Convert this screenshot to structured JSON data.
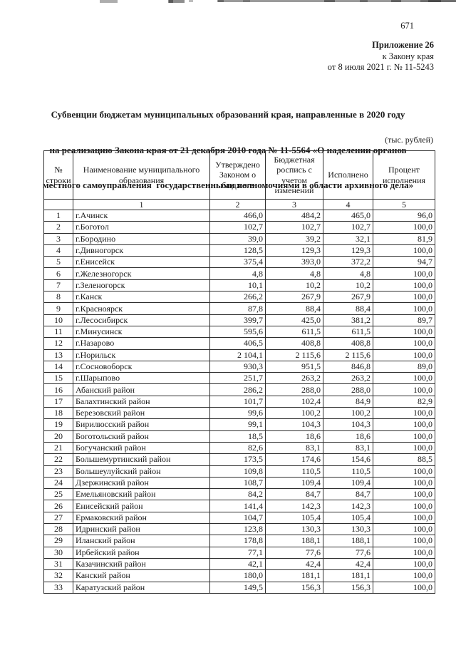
{
  "page": {
    "number": "671",
    "appendix": [
      "Приложение 26",
      "к Закону края",
      "от 8 июля 2021 г. № 11-5243"
    ],
    "title_lines": [
      "Субвенции бюджетам муниципальных образований края, направленные в 2020 году",
      "на реализацию Закона края от 21 декабря 2010 года № 11-5564 «О наделении органов",
      "местного самоуправления  государственными полномочиями в области архивного дела»"
    ],
    "units_note": "(тыс. рублей)"
  },
  "table": {
    "columns": [
      {
        "label": "№ строки",
        "index": ""
      },
      {
        "label": "Наименование муниципального образования",
        "index": "1"
      },
      {
        "label": "Утверждено Законом о бюджете",
        "index": "2"
      },
      {
        "label": "Бюджетная роспись с учетом изменений",
        "index": "3"
      },
      {
        "label": "Исполнено",
        "index": "4"
      },
      {
        "label": "Процент исполнения",
        "index": "5"
      }
    ],
    "rows": [
      {
        "num": "1",
        "name": "г.Ачинск",
        "approved": "466,0",
        "revised": "484,2",
        "executed": "465,0",
        "percent": "96,0"
      },
      {
        "num": "2",
        "name": "г.Боготол",
        "approved": "102,7",
        "revised": "102,7",
        "executed": "102,7",
        "percent": "100,0"
      },
      {
        "num": "3",
        "name": "г.Бородино",
        "approved": "39,0",
        "revised": "39,2",
        "executed": "32,1",
        "percent": "81,9"
      },
      {
        "num": "4",
        "name": "г.Дивногорск",
        "approved": "128,5",
        "revised": "129,3",
        "executed": "129,3",
        "percent": "100,0"
      },
      {
        "num": "5",
        "name": "г.Енисейск",
        "approved": "375,4",
        "revised": "393,0",
        "executed": "372,2",
        "percent": "94,7"
      },
      {
        "num": "6",
        "name": "г.Железногорск",
        "approved": "4,8",
        "revised": "4,8",
        "executed": "4,8",
        "percent": "100,0"
      },
      {
        "num": "7",
        "name": "г.Зеленогорск",
        "approved": "10,1",
        "revised": "10,2",
        "executed": "10,2",
        "percent": "100,0"
      },
      {
        "num": "8",
        "name": "г.Канск",
        "approved": "266,2",
        "revised": "267,9",
        "executed": "267,9",
        "percent": "100,0"
      },
      {
        "num": "9",
        "name": "г.Красноярск",
        "approved": "87,8",
        "revised": "88,4",
        "executed": "88,4",
        "percent": "100,0"
      },
      {
        "num": "10",
        "name": "г.Лесосибирск",
        "approved": "399,7",
        "revised": "425,0",
        "executed": "381,2",
        "percent": "89,7"
      },
      {
        "num": "11",
        "name": "г.Минусинск",
        "approved": "595,6",
        "revised": "611,5",
        "executed": "611,5",
        "percent": "100,0"
      },
      {
        "num": "12",
        "name": "г.Назарово",
        "approved": "406,5",
        "revised": "408,8",
        "executed": "408,8",
        "percent": "100,0"
      },
      {
        "num": "13",
        "name": "г.Норильск",
        "approved": "2 104,1",
        "revised": "2 115,6",
        "executed": "2 115,6",
        "percent": "100,0"
      },
      {
        "num": "14",
        "name": "г.Сосновоборск",
        "approved": "930,3",
        "revised": "951,5",
        "executed": "846,8",
        "percent": "89,0"
      },
      {
        "num": "15",
        "name": "г.Шарыпово",
        "approved": "251,7",
        "revised": "263,2",
        "executed": "263,2",
        "percent": "100,0"
      },
      {
        "num": "16",
        "name": "Абанский район",
        "approved": "286,2",
        "revised": "288,0",
        "executed": "288,0",
        "percent": "100,0"
      },
      {
        "num": "17",
        "name": "Балахтинский район",
        "approved": "101,7",
        "revised": "102,4",
        "executed": "84,9",
        "percent": "82,9"
      },
      {
        "num": "18",
        "name": "Березовский район",
        "approved": "99,6",
        "revised": "100,2",
        "executed": "100,2",
        "percent": "100,0"
      },
      {
        "num": "19",
        "name": "Бирилюсский район",
        "approved": "99,1",
        "revised": "104,3",
        "executed": "104,3",
        "percent": "100,0"
      },
      {
        "num": "20",
        "name": "Боготольский район",
        "approved": "18,5",
        "revised": "18,6",
        "executed": "18,6",
        "percent": "100,0"
      },
      {
        "num": "21",
        "name": "Богучанский район",
        "approved": "82,6",
        "revised": "83,1",
        "executed": "83,1",
        "percent": "100,0"
      },
      {
        "num": "22",
        "name": "Большемуртинский район",
        "approved": "173,5",
        "revised": "174,6",
        "executed": "154,6",
        "percent": "88,5"
      },
      {
        "num": "23",
        "name": "Большеулуйский район",
        "approved": "109,8",
        "revised": "110,5",
        "executed": "110,5",
        "percent": "100,0"
      },
      {
        "num": "24",
        "name": "Дзержинский район",
        "approved": "108,7",
        "revised": "109,4",
        "executed": "109,4",
        "percent": "100,0"
      },
      {
        "num": "25",
        "name": "Емельяновский район",
        "approved": "84,2",
        "revised": "84,7",
        "executed": "84,7",
        "percent": "100,0"
      },
      {
        "num": "26",
        "name": "Енисейский район",
        "approved": "141,4",
        "revised": "142,3",
        "executed": "142,3",
        "percent": "100,0"
      },
      {
        "num": "27",
        "name": "Ермаковский район",
        "approved": "104,7",
        "revised": "105,4",
        "executed": "105,4",
        "percent": "100,0"
      },
      {
        "num": "28",
        "name": "Идринский район",
        "approved": "123,8",
        "revised": "130,3",
        "executed": "130,3",
        "percent": "100,0"
      },
      {
        "num": "29",
        "name": "Иланский район",
        "approved": "178,8",
        "revised": "188,1",
        "executed": "188,1",
        "percent": "100,0"
      },
      {
        "num": "30",
        "name": "Ирбейский район",
        "approved": "77,1",
        "revised": "77,6",
        "executed": "77,6",
        "percent": "100,0"
      },
      {
        "num": "31",
        "name": "Казачинский район",
        "approved": "42,1",
        "revised": "42,4",
        "executed": "42,4",
        "percent": "100,0"
      },
      {
        "num": "32",
        "name": "Канский район",
        "approved": "180,0",
        "revised": "181,1",
        "executed": "181,1",
        "percent": "100,0"
      },
      {
        "num": "33",
        "name": "Каратузский район",
        "approved": "149,5",
        "revised": "156,3",
        "executed": "156,3",
        "percent": "100,0"
      }
    ]
  }
}
